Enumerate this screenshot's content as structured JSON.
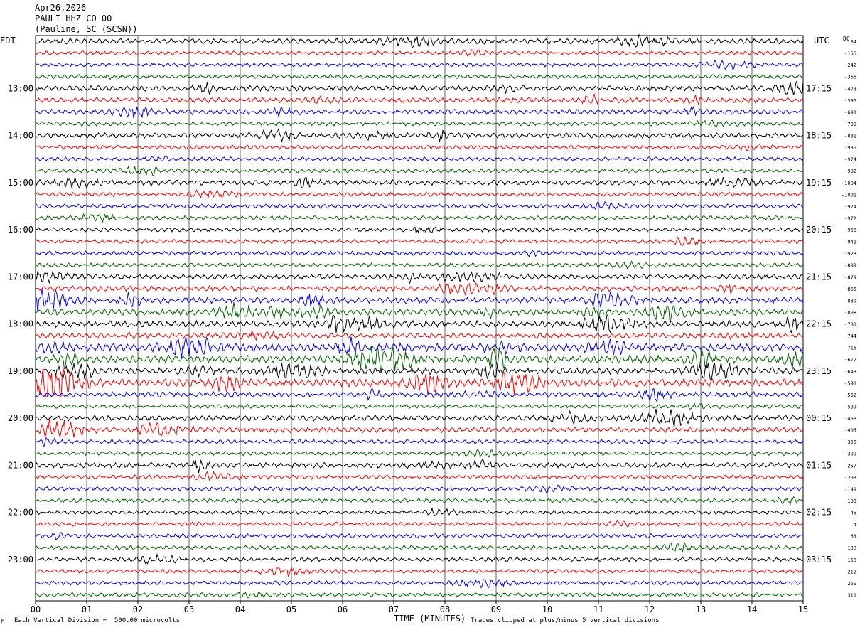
{
  "header": {
    "date": "Apr26,2026",
    "station": "PAULI HHZ CO 00",
    "location": "(Pauline, SC (SCSN))"
  },
  "left_tz": "EDT",
  "right_tz": "UTC",
  "dc_label": "DC",
  "footer": {
    "scale": "Each Vertical Division =  500.00 microvolts",
    "xlabel": "TIME (MINUTES)",
    "clip_note": "Traces clipped at plus/minus 5 vertical divisions",
    "corner_mark": "M"
  },
  "chart_data": {
    "type": "line",
    "title": "PAULI HHZ CO 00",
    "xlabel": "TIME (MINUTES)",
    "xlim": [
      0,
      15
    ],
    "x_ticks": [
      "00",
      "01",
      "02",
      "03",
      "04",
      "05",
      "06",
      "07",
      "08",
      "09",
      "10",
      "11",
      "12",
      "13",
      "14",
      "15"
    ],
    "trace_colors": [
      "#000000",
      "#ff0000",
      "#0000ff",
      "#006400"
    ],
    "trace_count": 48,
    "trace_interval_minutes": 15,
    "left_hour_labels": [
      "13:00",
      "14:00",
      "15:00",
      "16:00",
      "17:00",
      "18:00",
      "19:00",
      "20:00",
      "21:00",
      "22:00",
      "23:00"
    ],
    "right_hour_labels": [
      "17:15",
      "18:15",
      "19:15",
      "20:15",
      "21:15",
      "22:15",
      "23:15",
      "00:15",
      "01:15",
      "02:15",
      "03:15"
    ],
    "dc_offsets": [
      "94",
      "-156",
      "-242",
      "-366",
      "-473",
      "-596",
      "-693",
      "-799",
      "-881",
      "-930",
      "-974",
      "-992",
      "-1004",
      "-1001",
      "-974",
      "-972",
      "-956",
      "-941",
      "-923",
      "-899",
      "-879",
      "-855",
      "-830",
      "-808",
      "-780",
      "-744",
      "-716",
      "-672",
      "-643",
      "-598",
      "-552",
      "-509",
      "-458",
      "-405",
      "-356",
      "-309",
      "-257",
      "-203",
      "-149",
      "-103",
      "-45",
      "4",
      "63",
      "108",
      "158",
      "212",
      "260",
      "311"
    ],
    "trace_activity": [
      2,
      1,
      1,
      1,
      2,
      2,
      2,
      1,
      2,
      1,
      1,
      1,
      2,
      1,
      1,
      1,
      1,
      1,
      1,
      1,
      2,
      2,
      3,
      3,
      3,
      2,
      4,
      4,
      3,
      4,
      2,
      1,
      2,
      2,
      1,
      1,
      2,
      1,
      1,
      1,
      1,
      1,
      1,
      1,
      1,
      1,
      1,
      1
    ],
    "grid": true,
    "scale_microvolts_per_division": 500.0
  }
}
